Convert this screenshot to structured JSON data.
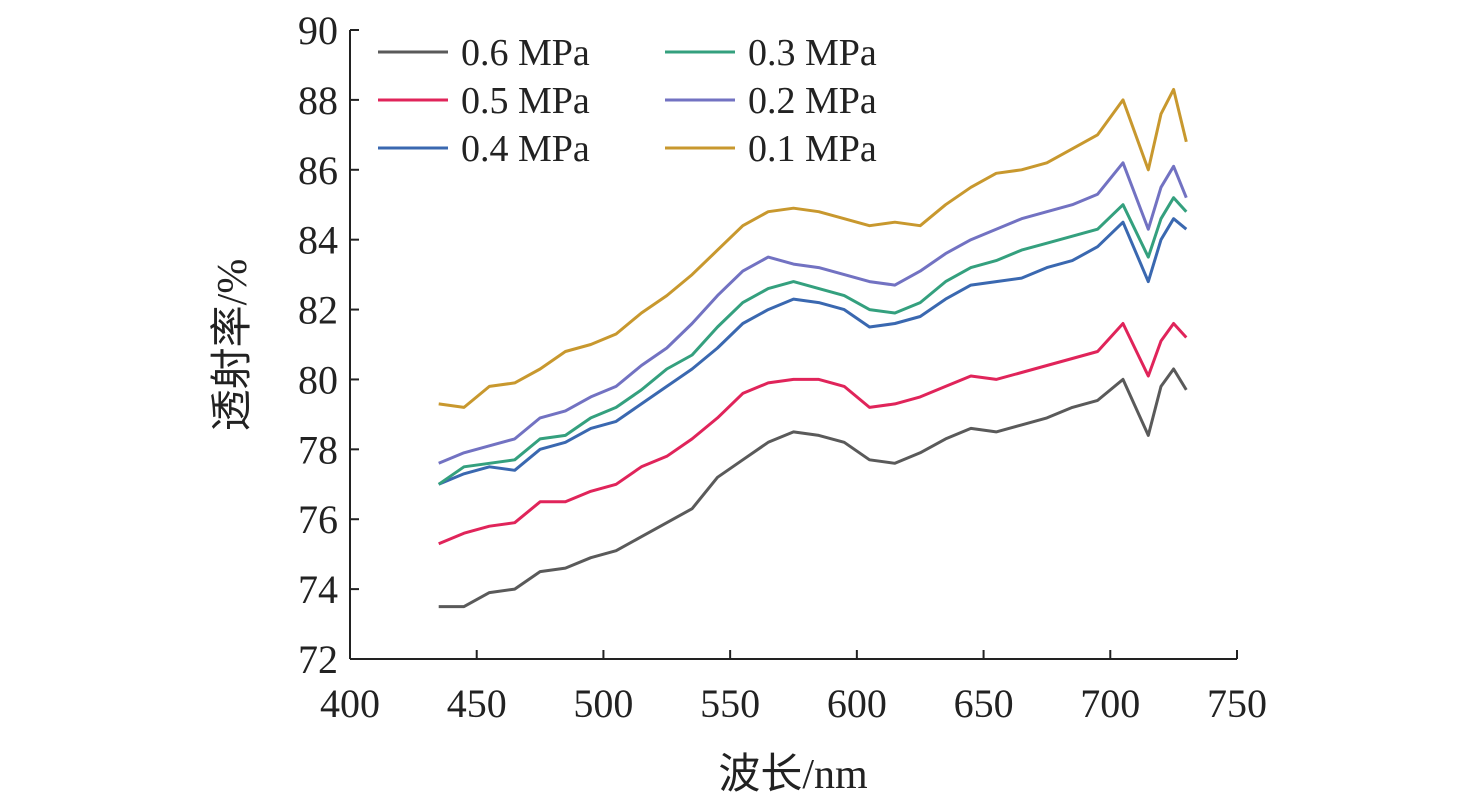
{
  "chart_data": {
    "type": "line",
    "title": "",
    "xlabel": "波长/nm",
    "ylabel": "透射率/%",
    "xlim": [
      400,
      750
    ],
    "ylim": [
      72,
      90
    ],
    "xticks": [
      "400",
      "450",
      "500",
      "550",
      "600",
      "650",
      "700",
      "750"
    ],
    "yticks": [
      "72",
      "74",
      "76",
      "78",
      "80",
      "82",
      "84",
      "86",
      "88",
      "90"
    ],
    "grid": false,
    "legend_placement": "top-left",
    "x": [
      435,
      445,
      455,
      465,
      475,
      485,
      495,
      505,
      515,
      525,
      535,
      545,
      555,
      565,
      575,
      585,
      595,
      605,
      615,
      625,
      635,
      645,
      655,
      665,
      675,
      685,
      695,
      705,
      715,
      720,
      725,
      730
    ],
    "series": [
      {
        "name": "0.6 MPa",
        "color": "#5a5a5a",
        "values": [
          73.5,
          73.5,
          73.9,
          74.0,
          74.5,
          74.6,
          74.9,
          75.1,
          75.5,
          75.9,
          76.3,
          77.2,
          77.7,
          78.2,
          78.5,
          78.4,
          78.2,
          77.7,
          77.6,
          77.9,
          78.3,
          78.6,
          78.5,
          78.7,
          78.9,
          79.2,
          79.4,
          80.0,
          78.4,
          79.8,
          80.3,
          79.7
        ]
      },
      {
        "name": "0.5 MPa",
        "color": "#e0245a",
        "values": [
          75.3,
          75.6,
          75.8,
          75.9,
          76.5,
          76.5,
          76.8,
          77.0,
          77.5,
          77.8,
          78.3,
          78.9,
          79.6,
          79.9,
          80.0,
          80.0,
          79.8,
          79.2,
          79.3,
          79.5,
          79.8,
          80.1,
          80.0,
          80.2,
          80.4,
          80.6,
          80.8,
          81.6,
          80.1,
          81.1,
          81.6,
          81.2
        ]
      },
      {
        "name": "0.4 MPa",
        "color": "#3a68b0",
        "values": [
          77.0,
          77.3,
          77.5,
          77.4,
          78.0,
          78.2,
          78.6,
          78.8,
          79.3,
          79.8,
          80.3,
          80.9,
          81.6,
          82.0,
          82.3,
          82.2,
          82.0,
          81.5,
          81.6,
          81.8,
          82.3,
          82.7,
          82.8,
          82.9,
          83.2,
          83.4,
          83.8,
          84.5,
          82.8,
          84.0,
          84.6,
          84.3
        ]
      },
      {
        "name": "0.3 MPa",
        "color": "#34a07e",
        "values": [
          77.0,
          77.5,
          77.6,
          77.7,
          78.3,
          78.4,
          78.9,
          79.2,
          79.7,
          80.3,
          80.7,
          81.5,
          82.2,
          82.6,
          82.8,
          82.6,
          82.4,
          82.0,
          81.9,
          82.2,
          82.8,
          83.2,
          83.4,
          83.7,
          83.9,
          84.1,
          84.3,
          85.0,
          83.5,
          84.6,
          85.2,
          84.8
        ]
      },
      {
        "name": "0.2 MPa",
        "color": "#7272c2",
        "values": [
          77.6,
          77.9,
          78.1,
          78.3,
          78.9,
          79.1,
          79.5,
          79.8,
          80.4,
          80.9,
          81.6,
          82.4,
          83.1,
          83.5,
          83.3,
          83.2,
          83.0,
          82.8,
          82.7,
          83.1,
          83.6,
          84.0,
          84.3,
          84.6,
          84.8,
          85.0,
          85.3,
          86.2,
          84.3,
          85.5,
          86.1,
          85.2
        ]
      },
      {
        "name": "0.1 MPa",
        "color": "#c8982e",
        "values": [
          79.3,
          79.2,
          79.8,
          79.9,
          80.3,
          80.8,
          81.0,
          81.3,
          81.9,
          82.4,
          83.0,
          83.7,
          84.4,
          84.8,
          84.9,
          84.8,
          84.6,
          84.4,
          84.5,
          84.4,
          85.0,
          85.5,
          85.9,
          86.0,
          86.2,
          86.6,
          87.0,
          88.0,
          86.0,
          87.6,
          88.3,
          86.8
        ]
      }
    ],
    "legend_order": [
      "0.6 MPa",
      "0.3 MPa",
      "0.5 MPa",
      "0.2 MPa",
      "0.4 MPa",
      "0.1 MPa"
    ]
  }
}
